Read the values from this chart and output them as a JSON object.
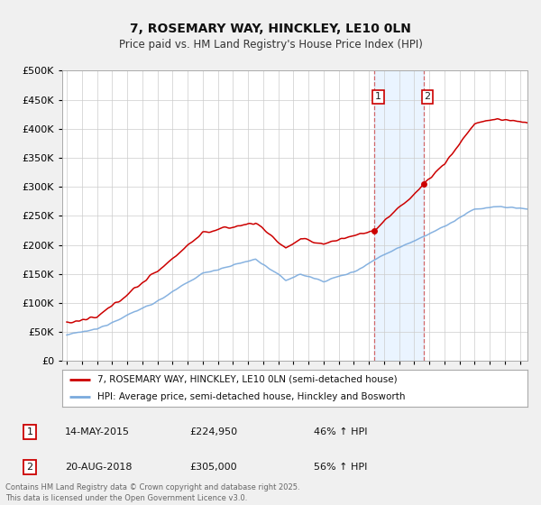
{
  "title": "7, ROSEMARY WAY, HINCKLEY, LE10 0LN",
  "subtitle": "Price paid vs. HM Land Registry's House Price Index (HPI)",
  "red_label": "7, ROSEMARY WAY, HINCKLEY, LE10 0LN (semi-detached house)",
  "blue_label": "HPI: Average price, semi-detached house, Hinckley and Bosworth",
  "annotation1": {
    "num": "1",
    "date": "14-MAY-2015",
    "price": "£224,950",
    "pct": "46% ↑ HPI"
  },
  "annotation2": {
    "num": "2",
    "date": "20-AUG-2018",
    "price": "£305,000",
    "pct": "56% ↑ HPI"
  },
  "footer": "Contains HM Land Registry data © Crown copyright and database right 2025.\nThis data is licensed under the Open Government Licence v3.0.",
  "ylim": [
    0,
    500000
  ],
  "yticks": [
    0,
    50000,
    100000,
    150000,
    200000,
    250000,
    300000,
    350000,
    400000,
    450000,
    500000
  ],
  "background_color": "#f0f0f0",
  "plot_bg": "#ffffff",
  "red_color": "#cc0000",
  "blue_color": "#7aaadd",
  "shade_color": "#ddeeff",
  "vline_color": "#cc4444",
  "annot_box_color": "#ffffff",
  "annot_box_edge": "#cc0000",
  "sale1_x": 2015.37,
  "sale1_y": 224950,
  "sale2_x": 2018.62,
  "sale2_y": 305000,
  "xmin": 1994.7,
  "xmax": 2025.5
}
